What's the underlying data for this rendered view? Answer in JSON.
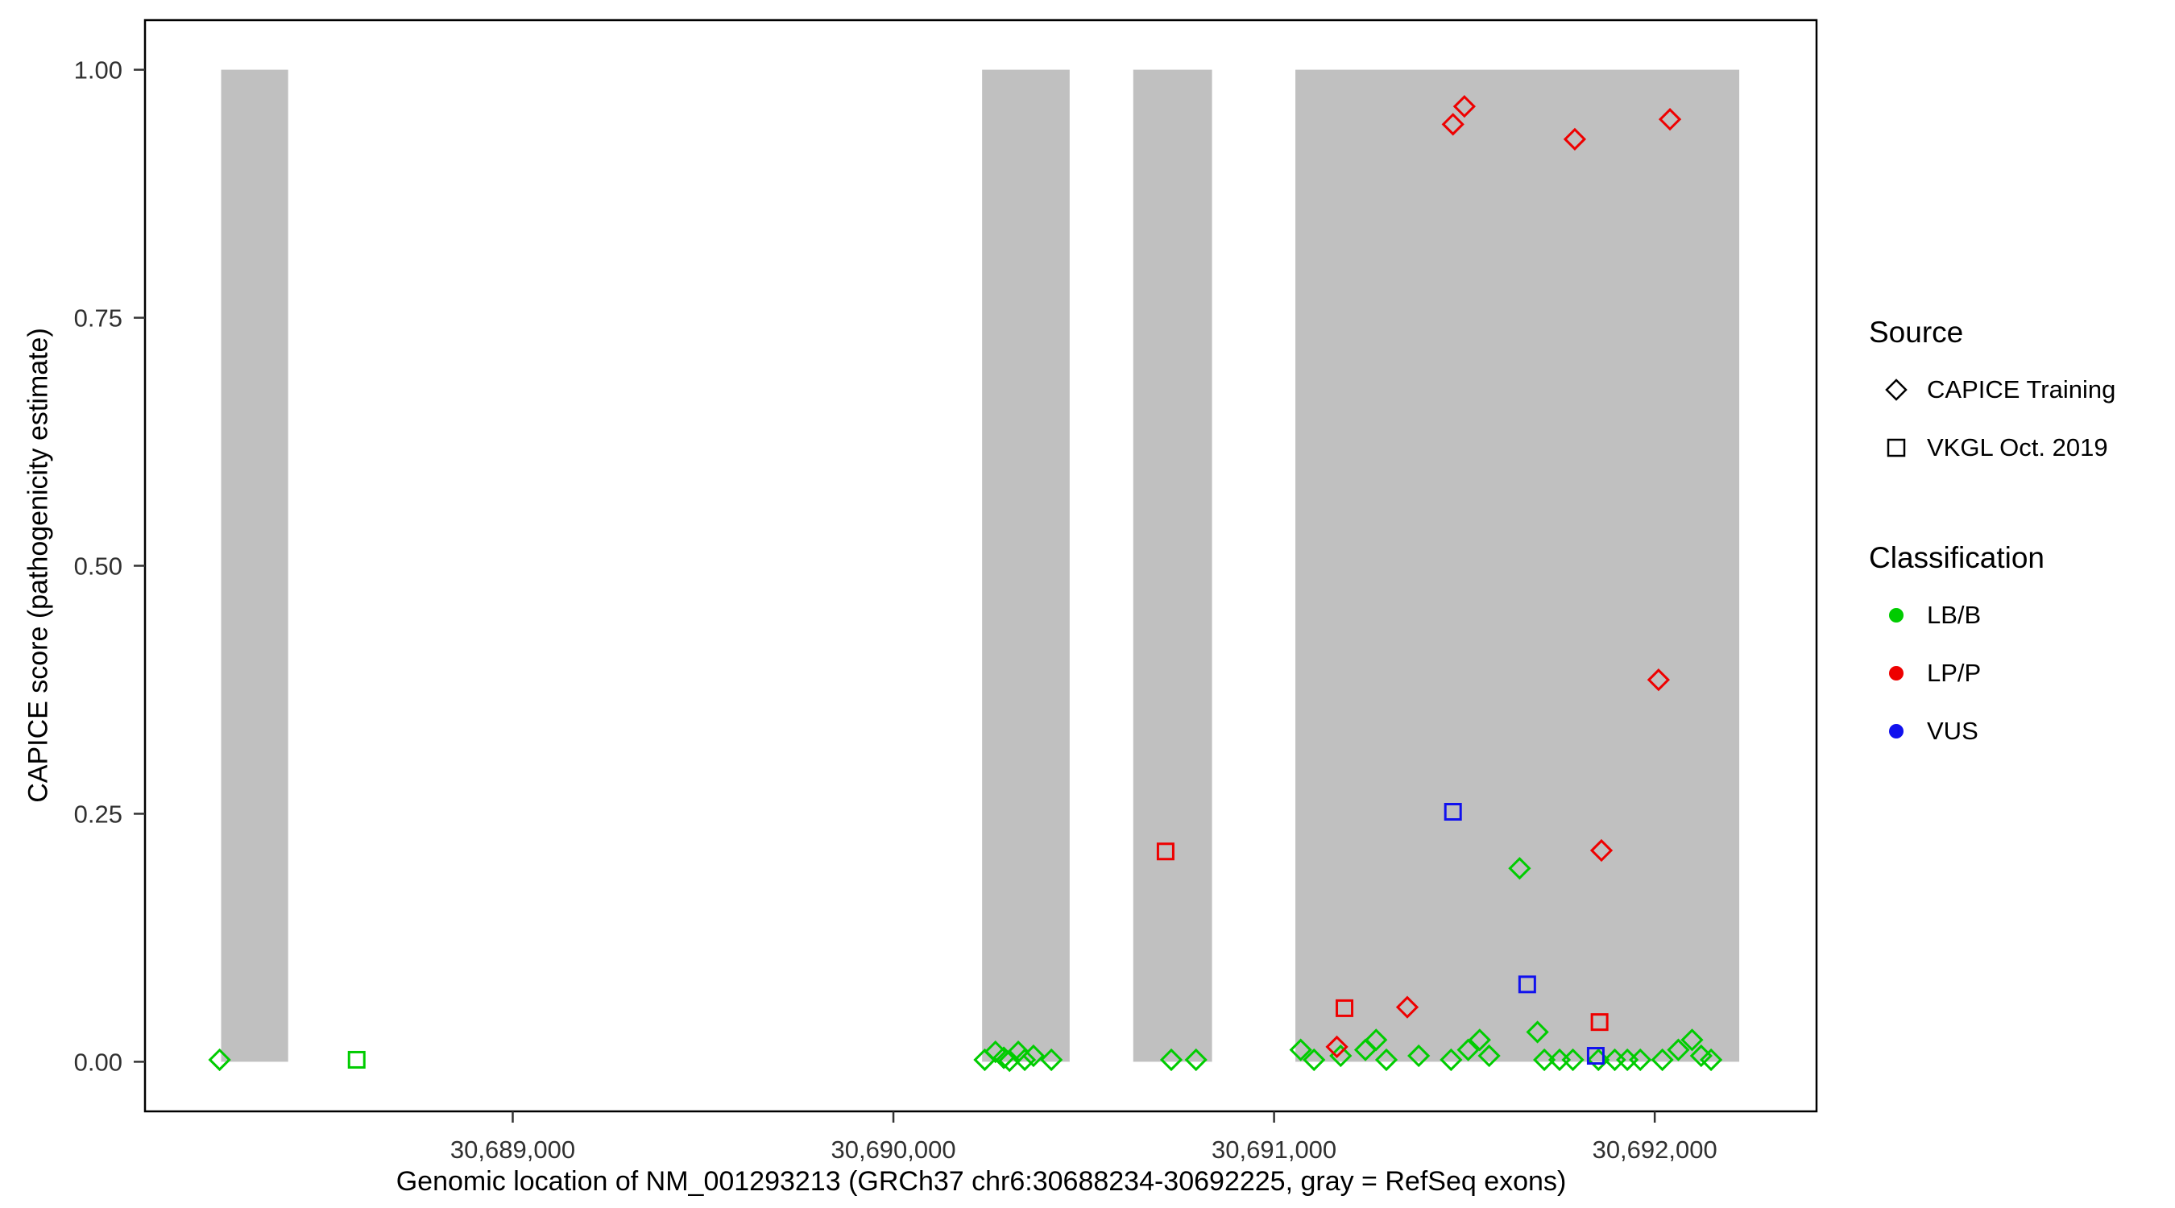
{
  "axes": {
    "y_title": "CAPICE score (pathogenicity estimate)",
    "x_title": "Genomic location of NM_001293213 (GRCh37 chr6:30688234-30692225, gray = RefSeq exons)",
    "y_ticks": [
      {
        "value": 0.0,
        "label": "0.00"
      },
      {
        "value": 0.25,
        "label": "0.25"
      },
      {
        "value": 0.5,
        "label": "0.50"
      },
      {
        "value": 0.75,
        "label": "0.75"
      },
      {
        "value": 1.0,
        "label": "1.00"
      }
    ],
    "x_ticks": [
      {
        "value": 30689000,
        "label": "30,689,000"
      },
      {
        "value": 30690000,
        "label": "30,690,000"
      },
      {
        "value": 30691000,
        "label": "30,691,000"
      },
      {
        "value": 30692000,
        "label": "30,692,000"
      }
    ]
  },
  "legend": {
    "source": {
      "title": "Source",
      "items": [
        {
          "shape": "diamond",
          "label": "CAPICE Training"
        },
        {
          "shape": "square",
          "label": "VKGL Oct. 2019"
        }
      ]
    },
    "classification": {
      "title": "Classification",
      "items": [
        {
          "label": "LB/B",
          "color": "#00CC00"
        },
        {
          "label": "LP/P",
          "color": "#EE0000"
        },
        {
          "label": "VUS",
          "color": "#1111EE"
        }
      ]
    }
  },
  "chart_data": {
    "type": "scatter",
    "title": "",
    "xlabel": "Genomic location of NM_001293213 (GRCh37 chr6:30688234-30692225, gray = RefSeq exons)",
    "ylabel": "CAPICE score (pathogenicity estimate)",
    "x_domain": [
      30688034,
      30692425
    ],
    "y_domain": [
      -0.05,
      1.05
    ],
    "grid": "off",
    "legend_position": "right",
    "exon_color": "#c0c0c0",
    "exon_bands": [
      [
        30688234,
        30688410
      ],
      [
        30690233,
        30690463
      ],
      [
        30690630,
        30690837
      ],
      [
        30691056,
        30692222
      ]
    ],
    "colors": {
      "LB/B": "#00CC00",
      "LP/P": "#EE0000",
      "VUS": "#1111EE"
    },
    "points": [
      {
        "x": 30688230,
        "y": 0.002,
        "shape": "diamond",
        "source": "CAPICE Training",
        "classification": "LB/B"
      },
      {
        "x": 30690240,
        "y": 0.002,
        "shape": "diamond",
        "source": "CAPICE Training",
        "classification": "LB/B"
      },
      {
        "x": 30690268,
        "y": 0.01,
        "shape": "diamond",
        "source": "CAPICE Training",
        "classification": "LB/B"
      },
      {
        "x": 30690290,
        "y": 0.004,
        "shape": "diamond",
        "source": "CAPICE Training",
        "classification": "LB/B"
      },
      {
        "x": 30690305,
        "y": 0.001,
        "shape": "diamond",
        "source": "CAPICE Training",
        "classification": "LB/B"
      },
      {
        "x": 30690328,
        "y": 0.01,
        "shape": "diamond",
        "source": "CAPICE Training",
        "classification": "LB/B"
      },
      {
        "x": 30690345,
        "y": 0.002,
        "shape": "diamond",
        "source": "CAPICE Training",
        "classification": "LB/B"
      },
      {
        "x": 30690368,
        "y": 0.006,
        "shape": "diamond",
        "source": "CAPICE Training",
        "classification": "LB/B"
      },
      {
        "x": 30690415,
        "y": 0.002,
        "shape": "diamond",
        "source": "CAPICE Training",
        "classification": "LB/B"
      },
      {
        "x": 30690730,
        "y": 0.002,
        "shape": "diamond",
        "source": "CAPICE Training",
        "classification": "LB/B"
      },
      {
        "x": 30690795,
        "y": 0.002,
        "shape": "diamond",
        "source": "CAPICE Training",
        "classification": "LB/B"
      },
      {
        "x": 30691070,
        "y": 0.012,
        "shape": "diamond",
        "source": "CAPICE Training",
        "classification": "LB/B"
      },
      {
        "x": 30691105,
        "y": 0.002,
        "shape": "diamond",
        "source": "CAPICE Training",
        "classification": "LB/B"
      },
      {
        "x": 30691175,
        "y": 0.006,
        "shape": "diamond",
        "source": "CAPICE Training",
        "classification": "LB/B"
      },
      {
        "x": 30691240,
        "y": 0.012,
        "shape": "diamond",
        "source": "CAPICE Training",
        "classification": "LB/B"
      },
      {
        "x": 30691268,
        "y": 0.022,
        "shape": "diamond",
        "source": "CAPICE Training",
        "classification": "LB/B"
      },
      {
        "x": 30691295,
        "y": 0.002,
        "shape": "diamond",
        "source": "CAPICE Training",
        "classification": "LB/B"
      },
      {
        "x": 30691380,
        "y": 0.006,
        "shape": "diamond",
        "source": "CAPICE Training",
        "classification": "LB/B"
      },
      {
        "x": 30691465,
        "y": 0.002,
        "shape": "diamond",
        "source": "CAPICE Training",
        "classification": "LB/B"
      },
      {
        "x": 30691510,
        "y": 0.012,
        "shape": "diamond",
        "source": "CAPICE Training",
        "classification": "LB/B"
      },
      {
        "x": 30691540,
        "y": 0.022,
        "shape": "diamond",
        "source": "CAPICE Training",
        "classification": "LB/B"
      },
      {
        "x": 30691565,
        "y": 0.006,
        "shape": "diamond",
        "source": "CAPICE Training",
        "classification": "LB/B"
      },
      {
        "x": 30691645,
        "y": 0.195,
        "shape": "diamond",
        "source": "CAPICE Training",
        "classification": "LB/B"
      },
      {
        "x": 30691692,
        "y": 0.03,
        "shape": "diamond",
        "source": "CAPICE Training",
        "classification": "LB/B"
      },
      {
        "x": 30691710,
        "y": 0.002,
        "shape": "diamond",
        "source": "CAPICE Training",
        "classification": "LB/B"
      },
      {
        "x": 30691750,
        "y": 0.002,
        "shape": "diamond",
        "source": "CAPICE Training",
        "classification": "LB/B"
      },
      {
        "x": 30691785,
        "y": 0.002,
        "shape": "diamond",
        "source": "CAPICE Training",
        "classification": "LB/B"
      },
      {
        "x": 30691852,
        "y": 0.002,
        "shape": "diamond",
        "source": "CAPICE Training",
        "classification": "LB/B"
      },
      {
        "x": 30691895,
        "y": 0.002,
        "shape": "diamond",
        "source": "CAPICE Training",
        "classification": "LB/B"
      },
      {
        "x": 30691928,
        "y": 0.002,
        "shape": "diamond",
        "source": "CAPICE Training",
        "classification": "LB/B"
      },
      {
        "x": 30691962,
        "y": 0.002,
        "shape": "diamond",
        "source": "CAPICE Training",
        "classification": "LB/B"
      },
      {
        "x": 30692020,
        "y": 0.002,
        "shape": "diamond",
        "source": "CAPICE Training",
        "classification": "LB/B"
      },
      {
        "x": 30692062,
        "y": 0.012,
        "shape": "diamond",
        "source": "CAPICE Training",
        "classification": "LB/B"
      },
      {
        "x": 30692098,
        "y": 0.022,
        "shape": "diamond",
        "source": "CAPICE Training",
        "classification": "LB/B"
      },
      {
        "x": 30692122,
        "y": 0.006,
        "shape": "diamond",
        "source": "CAPICE Training",
        "classification": "LB/B"
      },
      {
        "x": 30692148,
        "y": 0.002,
        "shape": "diamond",
        "source": "CAPICE Training",
        "classification": "LB/B"
      },
      {
        "x": 30688590,
        "y": 0.002,
        "shape": "square",
        "source": "VKGL Oct. 2019",
        "classification": "LB/B"
      },
      {
        "x": 30691470,
        "y": 0.252,
        "shape": "square",
        "source": "VKGL Oct. 2019",
        "classification": "VUS"
      },
      {
        "x": 30691665,
        "y": 0.078,
        "shape": "square",
        "source": "VKGL Oct. 2019",
        "classification": "VUS"
      },
      {
        "x": 30691845,
        "y": 0.006,
        "shape": "square",
        "source": "VKGL Oct. 2019",
        "classification": "VUS"
      },
      {
        "x": 30690715,
        "y": 0.212,
        "shape": "square",
        "source": "VKGL Oct. 2019",
        "classification": "LP/P"
      },
      {
        "x": 30691185,
        "y": 0.054,
        "shape": "square",
        "source": "VKGL Oct. 2019",
        "classification": "LP/P"
      },
      {
        "x": 30691855,
        "y": 0.04,
        "shape": "square",
        "source": "VKGL Oct. 2019",
        "classification": "LP/P"
      },
      {
        "x": 30691470,
        "y": 0.945,
        "shape": "diamond",
        "source": "CAPICE Training",
        "classification": "LP/P"
      },
      {
        "x": 30691500,
        "y": 0.963,
        "shape": "diamond",
        "source": "CAPICE Training",
        "classification": "LP/P"
      },
      {
        "x": 30691790,
        "y": 0.93,
        "shape": "diamond",
        "source": "CAPICE Training",
        "classification": "LP/P"
      },
      {
        "x": 30692040,
        "y": 0.95,
        "shape": "diamond",
        "source": "CAPICE Training",
        "classification": "LP/P"
      },
      {
        "x": 30692010,
        "y": 0.385,
        "shape": "diamond",
        "source": "CAPICE Training",
        "classification": "LP/P"
      },
      {
        "x": 30691860,
        "y": 0.213,
        "shape": "diamond",
        "source": "CAPICE Training",
        "classification": "LP/P"
      },
      {
        "x": 30691350,
        "y": 0.055,
        "shape": "diamond",
        "source": "CAPICE Training",
        "classification": "LP/P"
      },
      {
        "x": 30691165,
        "y": 0.015,
        "shape": "diamond",
        "source": "CAPICE Training",
        "classification": "LP/P"
      }
    ]
  }
}
